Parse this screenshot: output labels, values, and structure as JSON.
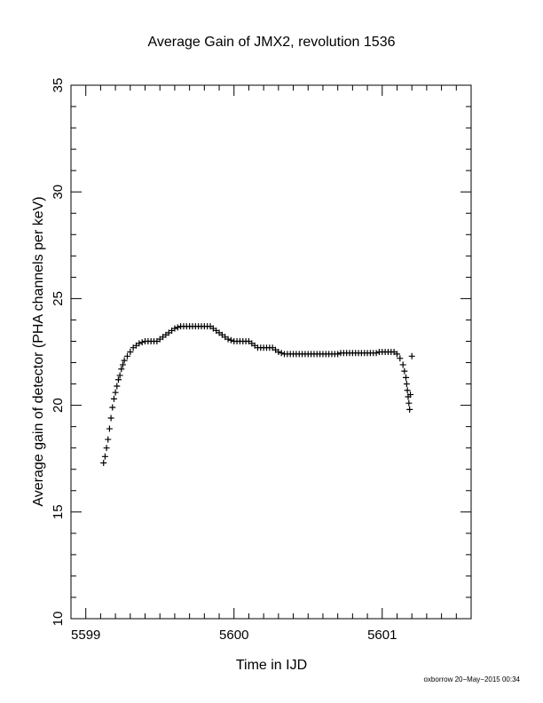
{
  "chart_data": {
    "type": "scatter",
    "title": "Average Gain of JMX2, revolution 1536",
    "xlabel": "Time in IJD",
    "ylabel": "Average gain of detector (PHA channels per keV)",
    "xlim": [
      5598.9,
      5601.6
    ],
    "ylim": [
      10,
      35
    ],
    "x_ticks": [
      5599,
      5600,
      5601
    ],
    "x_tick_labels": [
      "5599",
      "5600",
      "5601"
    ],
    "y_ticks": [
      10,
      15,
      20,
      25,
      30,
      35
    ],
    "y_tick_labels": [
      "10",
      "15",
      "20",
      "25",
      "30",
      "35"
    ],
    "x_minor_step": 0.1,
    "y_minor_step": 1,
    "grid": false,
    "marker": "+",
    "marker_color": "#000000",
    "x": [
      5599.12,
      5599.13,
      5599.14,
      5599.15,
      5599.16,
      5599.17,
      5599.18,
      5599.19,
      5599.2,
      5599.21,
      5599.22,
      5599.23,
      5599.24,
      5599.25,
      5599.26,
      5599.28,
      5599.3,
      5599.32,
      5599.34,
      5599.36,
      5599.38,
      5599.4,
      5599.42,
      5599.44,
      5599.46,
      5599.48,
      5599.5,
      5599.52,
      5599.54,
      5599.56,
      5599.58,
      5599.6,
      5599.62,
      5599.64,
      5599.66,
      5599.68,
      5599.7,
      5599.72,
      5599.74,
      5599.76,
      5599.78,
      5599.8,
      5599.82,
      5599.84,
      5599.86,
      5599.88,
      5599.9,
      5599.92,
      5599.94,
      5599.96,
      5599.98,
      5600.0,
      5600.02,
      5600.04,
      5600.06,
      5600.08,
      5600.1,
      5600.12,
      5600.14,
      5600.16,
      5600.18,
      5600.2,
      5600.22,
      5600.24,
      5600.26,
      5600.28,
      5600.3,
      5600.32,
      5600.34,
      5600.36,
      5600.38,
      5600.4,
      5600.42,
      5600.44,
      5600.46,
      5600.48,
      5600.5,
      5600.52,
      5600.54,
      5600.56,
      5600.58,
      5600.6,
      5600.62,
      5600.64,
      5600.66,
      5600.68,
      5600.7,
      5600.72,
      5600.74,
      5600.76,
      5600.78,
      5600.8,
      5600.82,
      5600.84,
      5600.86,
      5600.88,
      5600.9,
      5600.92,
      5600.94,
      5600.96,
      5600.98,
      5601.0,
      5601.02,
      5601.04,
      5601.06,
      5601.08,
      5601.1,
      5601.12,
      5601.14,
      5601.15,
      5601.16,
      5601.165,
      5601.17,
      5601.175,
      5601.18,
      5601.185,
      5601.19,
      5601.2
    ],
    "y": [
      17.3,
      17.6,
      18.0,
      18.4,
      18.9,
      19.4,
      19.9,
      20.3,
      20.6,
      20.9,
      21.2,
      21.4,
      21.7,
      21.9,
      22.1,
      22.3,
      22.5,
      22.7,
      22.8,
      22.9,
      22.95,
      23.0,
      23.0,
      23.0,
      23.0,
      23.0,
      23.1,
      23.2,
      23.3,
      23.4,
      23.5,
      23.6,
      23.65,
      23.7,
      23.7,
      23.7,
      23.7,
      23.7,
      23.7,
      23.7,
      23.7,
      23.7,
      23.7,
      23.7,
      23.6,
      23.5,
      23.4,
      23.3,
      23.2,
      23.1,
      23.05,
      23.0,
      23.0,
      23.0,
      23.0,
      23.0,
      23.0,
      22.9,
      22.8,
      22.7,
      22.7,
      22.7,
      22.7,
      22.7,
      22.7,
      22.6,
      22.5,
      22.45,
      22.4,
      22.4,
      22.4,
      22.4,
      22.4,
      22.4,
      22.4,
      22.4,
      22.4,
      22.4,
      22.4,
      22.4,
      22.4,
      22.4,
      22.4,
      22.4,
      22.4,
      22.4,
      22.4,
      22.45,
      22.45,
      22.45,
      22.45,
      22.45,
      22.45,
      22.45,
      22.45,
      22.45,
      22.45,
      22.45,
      22.45,
      22.45,
      22.5,
      22.5,
      22.5,
      22.5,
      22.5,
      22.5,
      22.4,
      22.2,
      21.9,
      21.6,
      21.3,
      21.0,
      20.7,
      20.4,
      20.1,
      19.8,
      20.5,
      22.3
    ]
  },
  "footer": "oxborrow 20−May−2015 00:34"
}
